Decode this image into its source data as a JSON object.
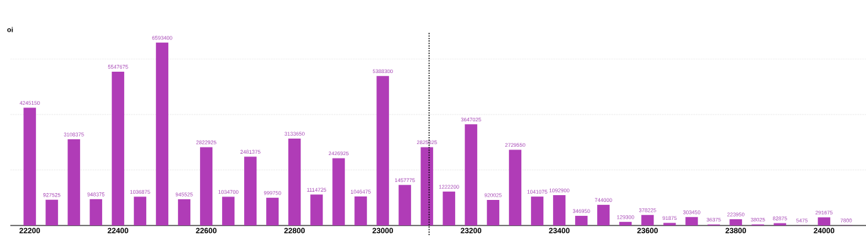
{
  "chart_data": {
    "type": "bar",
    "annotations": [
      "oi"
    ],
    "x": [
      22200,
      22250,
      22300,
      22350,
      22400,
      22450,
      22500,
      22550,
      22600,
      22650,
      22700,
      22750,
      22800,
      22850,
      22900,
      22950,
      23000,
      23050,
      23100,
      23150,
      23200,
      23250,
      23300,
      23350,
      23400,
      23450,
      23500,
      23550,
      23600,
      23650,
      23700,
      23750,
      23800,
      23850,
      23900,
      23950,
      24000,
      24050
    ],
    "values": [
      4245150,
      927525,
      3108375,
      948375,
      5547675,
      1036875,
      6593400,
      945525,
      2822925,
      1034700,
      2481375,
      999750,
      3133650,
      1114725,
      2426925,
      1046475,
      5388300,
      1457775,
      2825025,
      1222200,
      3647025,
      920025,
      2729550,
      1041075,
      1092900,
      346950,
      744000,
      129300,
      378225,
      91875,
      303450,
      36375,
      223950,
      38025,
      82875,
      5475,
      291675,
      7800
    ],
    "color": "#b03cb7",
    "data_labels": true,
    "xlim": [
      22156,
      24095
    ],
    "xticks": [
      22200,
      22400,
      22600,
      22800,
      23000,
      23200,
      23400,
      23600,
      23800,
      24000
    ],
    "yticks": [
      {
        "value": 2000000,
        "label": null
      },
      {
        "value": 4000000,
        "label": null
      },
      {
        "value": 6000000,
        "label": null
      }
    ],
    "tick_labels": "x",
    "grid": "y",
    "ref_lines": [
      {
        "axis": "x",
        "value": 23105,
        "line_style": "dotted",
        "color": "#000000"
      }
    ]
  }
}
